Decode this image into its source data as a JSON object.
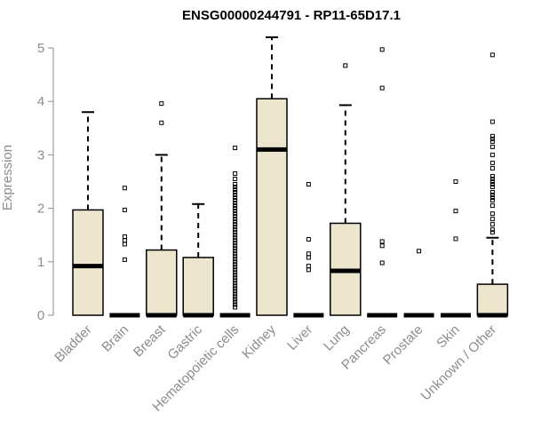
{
  "chart_data": {
    "type": "box",
    "title": "ENSG00000244791 - RP11-65D17.1",
    "xlabel": "",
    "ylabel": "Expression",
    "ylim": [
      0,
      5.2
    ],
    "yticks": [
      "0",
      "1",
      "2",
      "3",
      "4",
      "5"
    ],
    "categories": [
      "Bladder",
      "Brain",
      "Breast",
      "Gastric",
      "Hematopoietic cells",
      "Kidney",
      "Liver",
      "Lung",
      "Pancreas",
      "Prostate",
      "Skin",
      "Unknown / Other"
    ],
    "boxes": [
      {
        "q1": 0,
        "median": 0.92,
        "q3": 1.97,
        "whisker_low": 0,
        "whisker_high": 3.8,
        "outliers": []
      },
      {
        "q1": 0,
        "median": 0,
        "q3": 0,
        "whisker_low": 0,
        "whisker_high": 0,
        "outliers": [
          2.38,
          1.97,
          1.47,
          1.4,
          1.33,
          1.04
        ]
      },
      {
        "q1": 0,
        "median": 0,
        "q3": 1.22,
        "whisker_low": 0,
        "whisker_high": 3.0,
        "outliers": [
          3.96,
          3.6
        ]
      },
      {
        "q1": 0,
        "median": 0,
        "q3": 1.08,
        "whisker_low": 0,
        "whisker_high": 2.08,
        "outliers": []
      },
      {
        "q1": 0,
        "median": 0,
        "q3": 0,
        "whisker_low": 0,
        "whisker_high": 0,
        "outliers": [
          3.13,
          2.65,
          2.55,
          2.45,
          2.4,
          2.35,
          2.3,
          2.25,
          2.2,
          2.15,
          2.1,
          2.05,
          2.0,
          1.95,
          1.9,
          1.85,
          1.8,
          1.75,
          1.7,
          1.65,
          1.6,
          1.55,
          1.5,
          1.45,
          1.4,
          1.35,
          1.3,
          1.25,
          1.2,
          1.15,
          1.1,
          1.05,
          1.0,
          0.95,
          0.9,
          0.85,
          0.8,
          0.75,
          0.7,
          0.65,
          0.6,
          0.55,
          0.5,
          0.45,
          0.4,
          0.35,
          0.3,
          0.25,
          0.2,
          0.15
        ]
      },
      {
        "q1": 0,
        "median": 3.1,
        "q3": 4.05,
        "whisker_low": 0,
        "whisker_high": 5.2,
        "outliers": []
      },
      {
        "q1": 0,
        "median": 0,
        "q3": 0,
        "whisker_low": 0,
        "whisker_high": 0,
        "outliers": [
          2.45,
          1.42,
          1.15,
          1.08,
          0.92,
          0.85
        ]
      },
      {
        "q1": 0,
        "median": 0.83,
        "q3": 1.72,
        "whisker_low": 0,
        "whisker_high": 3.93,
        "outliers": [
          4.67
        ]
      },
      {
        "q1": 0,
        "median": 0,
        "q3": 0,
        "whisker_low": 0,
        "whisker_high": 0,
        "outliers": [
          4.97,
          4.25,
          1.38,
          1.3,
          0.98
        ]
      },
      {
        "q1": 0,
        "median": 0,
        "q3": 0,
        "whisker_low": 0,
        "whisker_high": 0,
        "outliers": [
          1.2
        ]
      },
      {
        "q1": 0,
        "median": 0,
        "q3": 0,
        "whisker_low": 0,
        "whisker_high": 0,
        "outliers": [
          2.5,
          1.95,
          1.43
        ]
      },
      {
        "q1": 0,
        "median": 0,
        "q3": 0.58,
        "whisker_low": 0,
        "whisker_high": 1.45,
        "outliers": [
          4.87,
          3.62,
          3.35,
          3.3,
          3.25,
          3.15,
          3.0,
          2.85,
          2.75,
          2.6,
          2.55,
          2.5,
          2.45,
          2.4,
          2.3,
          2.25,
          2.2,
          2.15,
          2.05,
          1.9,
          1.8,
          1.7,
          1.6,
          1.55
        ]
      }
    ],
    "box_fill": "#ede6cf",
    "box_stroke": "#000000",
    "axis_color": "#8c8c8c",
    "grid": false,
    "legend": "none"
  }
}
